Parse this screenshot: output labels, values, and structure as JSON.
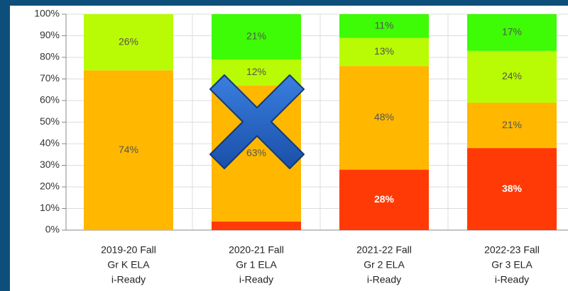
{
  "chart_data": {
    "type": "stacked_bar",
    "categories": [
      [
        "2019-20 Fall",
        "Gr K ELA",
        "i-Ready"
      ],
      [
        "2020-21 Fall",
        "Gr 1 ELA",
        "i-Ready"
      ],
      [
        "2021-22 Fall",
        "Gr 2 ELA",
        "i-Ready"
      ],
      [
        "2022-23 Fall",
        "Gr 3 ELA",
        "i-Ready"
      ]
    ],
    "series": [
      {
        "color": "#ff3a06",
        "values": [
          0,
          4,
          28,
          38
        ],
        "value_labels": [
          null,
          null,
          "28%",
          "38%"
        ]
      },
      {
        "color": "#ffb700",
        "values": [
          74,
          63,
          48,
          21
        ],
        "value_labels": [
          "74%",
          "63%",
          "48%",
          "21%"
        ]
      },
      {
        "color": "#b9fb04",
        "values": [
          26,
          12,
          13,
          24
        ],
        "value_labels": [
          "26%",
          "12%",
          "13%",
          "24%"
        ]
      },
      {
        "color": "#3efb06",
        "values": [
          0,
          21,
          11,
          17
        ],
        "value_labels": [
          null,
          "21%",
          "11%",
          "17%"
        ]
      }
    ],
    "ylim": [
      0,
      100
    ],
    "yticks": [
      {
        "value": 0,
        "label": "0%"
      },
      {
        "value": 10,
        "label": "10%"
      },
      {
        "value": 20,
        "label": "20%"
      },
      {
        "value": 30,
        "label": "30%"
      },
      {
        "value": 40,
        "label": "40%"
      },
      {
        "value": 50,
        "label": "50%"
      },
      {
        "value": 60,
        "label": "60%"
      },
      {
        "value": 70,
        "label": "70%"
      },
      {
        "value": 80,
        "label": "80%"
      },
      {
        "value": 90,
        "label": "90%"
      },
      {
        "value": 100,
        "label": "100%"
      }
    ],
    "grid": true
  }
}
